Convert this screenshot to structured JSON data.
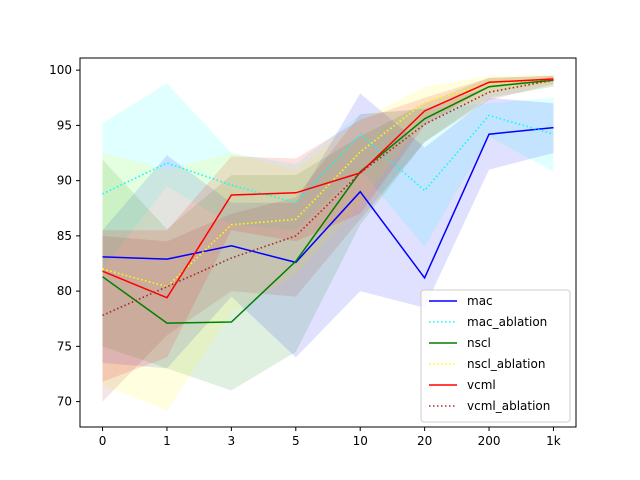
{
  "chart_data": {
    "type": "line",
    "title": "",
    "xlabel": "",
    "ylabel": "",
    "categories": [
      "0",
      "1",
      "3",
      "5",
      "10",
      "20",
      "200",
      "1k"
    ],
    "ylim": [
      67.7,
      101.1
    ],
    "yticks": [
      70,
      75,
      80,
      85,
      90,
      95,
      100
    ],
    "grid": false,
    "legend_position": "lower-right",
    "series": [
      {
        "name": "mac",
        "color": "#0000ff",
        "style": "solid",
        "values": [
          83.1,
          82.9,
          84.1,
          82.6,
          89.0,
          81.2,
          94.2,
          94.8
        ],
        "upper": [
          85.5,
          92.3,
          88.0,
          88.0,
          97.9,
          93.0,
          97.5,
          97.0
        ],
        "lower": [
          73.5,
          73.0,
          79.5,
          74.0,
          80.0,
          78.5,
          91.0,
          92.5
        ]
      },
      {
        "name": "mac_ablation",
        "color": "#00ffff",
        "style": "dotted",
        "values": [
          88.8,
          91.6,
          89.6,
          88.0,
          94.2,
          89.1,
          95.9,
          94.2
        ],
        "upper": [
          95.2,
          98.8,
          92.5,
          91.5,
          96.0,
          96.5,
          97.0,
          97.5
        ],
        "lower": [
          82.0,
          89.5,
          86.0,
          85.5,
          91.0,
          84.0,
          94.0,
          90.8
        ]
      },
      {
        "name": "nscl",
        "color": "#008000",
        "style": "solid",
        "values": [
          81.3,
          77.1,
          77.2,
          82.7,
          90.8,
          95.6,
          98.5,
          99.1
        ],
        "upper": [
          91.9,
          85.6,
          90.5,
          90.5,
          94.0,
          97.0,
          99.3,
          99.5
        ],
        "lower": [
          75.0,
          73.0,
          71.0,
          74.5,
          86.0,
          93.5,
          97.5,
          98.5
        ]
      },
      {
        "name": "nscl_ablation",
        "color": "#ffff00",
        "style": "dotted",
        "values": [
          82.0,
          80.4,
          86.0,
          86.5,
          92.6,
          97.1,
          98.8,
          99.2
        ],
        "upper": [
          92.5,
          91.0,
          92.5,
          91.0,
          95.5,
          98.5,
          99.5,
          99.6
        ],
        "lower": [
          71.5,
          69.2,
          78.0,
          81.5,
          88.0,
          95.5,
          98.0,
          98.7
        ]
      },
      {
        "name": "vcml",
        "color": "#ff0000",
        "style": "solid",
        "values": [
          81.8,
          79.4,
          88.7,
          88.9,
          90.7,
          96.3,
          98.9,
          99.2
        ],
        "upper": [
          85.5,
          85.5,
          92.2,
          92.0,
          95.5,
          97.5,
          99.3,
          99.5
        ],
        "lower": [
          71.8,
          74.0,
          85.5,
          84.5,
          87.0,
          95.0,
          98.5,
          98.9
        ]
      },
      {
        "name": "vcml_ablation",
        "color": "#a52a2a",
        "style": "dotted",
        "values": [
          77.8,
          80.4,
          83.0,
          85.0,
          90.7,
          95.1,
          98.0,
          99.1
        ],
        "upper": [
          85.0,
          84.5,
          87.0,
          88.5,
          96.0,
          96.5,
          98.5,
          99.4
        ],
        "lower": [
          70.0,
          76.0,
          80.0,
          79.5,
          86.5,
          93.5,
          97.3,
          98.7
        ]
      }
    ]
  }
}
